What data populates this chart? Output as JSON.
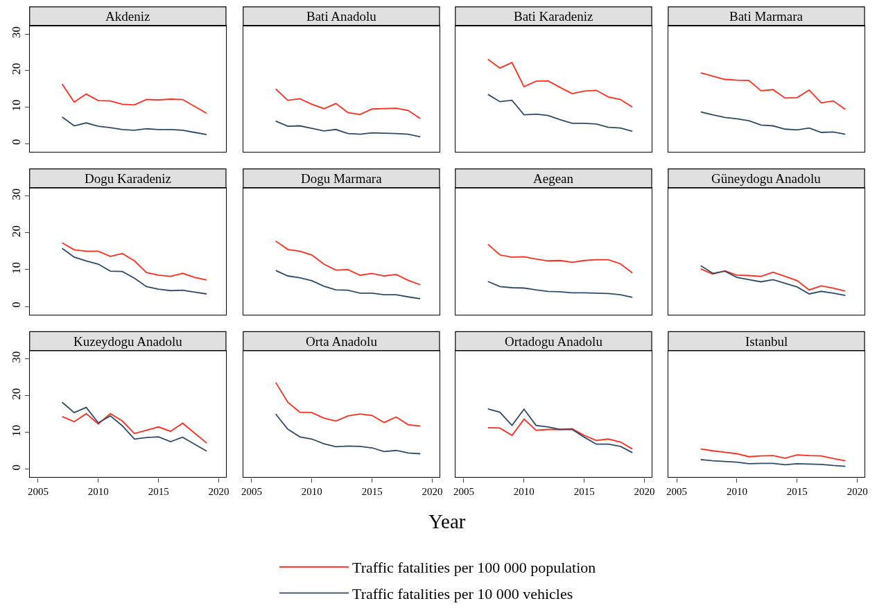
{
  "chart_data": [
    {
      "type": "line",
      "title": "Akdeniz",
      "x": [
        2007,
        2008,
        2009,
        2010,
        2011,
        2012,
        2013,
        2014,
        2015,
        2016,
        2017,
        2018,
        2019
      ],
      "xlim": [
        2004.3,
        2020.6
      ],
      "ylim": [
        -2.2,
        32.2
      ],
      "xticks": [
        2005,
        2010,
        2015,
        2020
      ],
      "yticks": [
        0,
        10,
        20,
        30
      ],
      "tick_labels": "y",
      "grid": false,
      "legend": "bottom",
      "series": [
        {
          "name": "Traffic fatalities per 100 000 population",
          "color": "#ff2a1a",
          "values": [
            16.3,
            11.4,
            13.6,
            11.8,
            11.7,
            10.8,
            10.6,
            12.1,
            12.0,
            12.2,
            12.1,
            10.2,
            8.3
          ]
        },
        {
          "name": "Traffic fatalities per 10 000 vehicles",
          "color": "#2e4a6b",
          "values": [
            7.3,
            4.9,
            5.7,
            4.8,
            4.4,
            3.9,
            3.7,
            4.1,
            3.9,
            3.9,
            3.7,
            3.1,
            2.5
          ]
        }
      ]
    },
    {
      "type": "line",
      "title": "Bati Anadolu",
      "x": [
        2007,
        2008,
        2009,
        2010,
        2011,
        2012,
        2013,
        2014,
        2015,
        2016,
        2017,
        2018,
        2019
      ],
      "xlim": [
        2004.3,
        2020.6
      ],
      "ylim": [
        -2.2,
        32.2
      ],
      "xticks": [
        2005,
        2010,
        2015,
        2020
      ],
      "yticks": [
        0,
        10,
        20,
        30
      ],
      "tick_labels": false,
      "grid": false,
      "series": [
        {
          "name": "Traffic fatalities per 100 000 population",
          "color": "#ff2a1a",
          "values": [
            15.0,
            11.9,
            12.3,
            10.8,
            9.6,
            11.0,
            8.5,
            8.0,
            9.5,
            9.6,
            9.7,
            9.1,
            6.9
          ]
        },
        {
          "name": "Traffic fatalities per 10 000 vehicles",
          "color": "#2e4a6b",
          "values": [
            6.2,
            4.8,
            4.9,
            4.2,
            3.5,
            3.9,
            2.8,
            2.6,
            3.0,
            2.9,
            2.8,
            2.6,
            1.9
          ]
        }
      ]
    },
    {
      "type": "line",
      "title": "Bati Karadeniz",
      "x": [
        2007,
        2008,
        2009,
        2010,
        2011,
        2012,
        2013,
        2014,
        2015,
        2016,
        2017,
        2018,
        2019
      ],
      "xlim": [
        2004.3,
        2020.6
      ],
      "ylim": [
        -2.2,
        32.2
      ],
      "xticks": [
        2005,
        2010,
        2015,
        2020
      ],
      "yticks": [
        0,
        10,
        20,
        30
      ],
      "tick_labels": false,
      "grid": false,
      "series": [
        {
          "name": "Traffic fatalities per 100 000 population",
          "color": "#ff2a1a",
          "values": [
            23.1,
            20.7,
            22.2,
            15.6,
            17.1,
            17.2,
            15.4,
            13.7,
            14.4,
            14.6,
            12.8,
            12.1,
            10.0
          ]
        },
        {
          "name": "Traffic fatalities per 10 000 vehicles",
          "color": "#2e4a6b",
          "values": [
            13.5,
            11.5,
            11.9,
            7.9,
            8.1,
            7.7,
            6.6,
            5.6,
            5.6,
            5.4,
            4.5,
            4.3,
            3.4
          ]
        }
      ]
    },
    {
      "type": "line",
      "title": "Bati Marmara",
      "x": [
        2007,
        2008,
        2009,
        2010,
        2011,
        2012,
        2013,
        2014,
        2015,
        2016,
        2017,
        2018,
        2019
      ],
      "xlim": [
        2004.3,
        2020.6
      ],
      "ylim": [
        -2.2,
        32.2
      ],
      "xticks": [
        2005,
        2010,
        2015,
        2020
      ],
      "yticks": [
        0,
        10,
        20,
        30
      ],
      "tick_labels": false,
      "grid": false,
      "series": [
        {
          "name": "Traffic fatalities per 100 000 population",
          "color": "#ff2a1a",
          "values": [
            19.4,
            18.5,
            17.6,
            17.4,
            17.3,
            14.5,
            14.8,
            12.5,
            12.6,
            14.7,
            11.2,
            11.7,
            9.4
          ]
        },
        {
          "name": "Traffic fatalities per 10 000 vehicles",
          "color": "#2e4a6b",
          "values": [
            8.7,
            7.9,
            7.2,
            6.8,
            6.3,
            5.1,
            4.9,
            4.0,
            3.8,
            4.3,
            3.1,
            3.2,
            2.6
          ]
        }
      ]
    },
    {
      "type": "line",
      "title": "Dogu Karadeniz",
      "x": [
        2007,
        2008,
        2009,
        2010,
        2011,
        2012,
        2013,
        2014,
        2015,
        2016,
        2017,
        2018,
        2019
      ],
      "xlim": [
        2004.3,
        2020.6
      ],
      "ylim": [
        -2.2,
        32.2
      ],
      "xticks": [
        2005,
        2010,
        2015,
        2020
      ],
      "yticks": [
        0,
        10,
        20,
        30
      ],
      "tick_labels": "y",
      "grid": false,
      "series": [
        {
          "name": "Traffic fatalities per 100 000 population",
          "color": "#ff2a1a",
          "values": [
            17.3,
            15.4,
            15.0,
            15.0,
            13.6,
            14.4,
            12.4,
            9.2,
            8.5,
            8.2,
            9.0,
            7.9,
            7.2
          ]
        },
        {
          "name": "Traffic fatalities per 10 000 vehicles",
          "color": "#2e4a6b",
          "values": [
            15.8,
            13.4,
            12.4,
            11.5,
            9.6,
            9.5,
            7.7,
            5.4,
            4.7,
            4.3,
            4.4,
            3.9,
            3.4
          ]
        }
      ]
    },
    {
      "type": "line",
      "title": "Dogu Marmara",
      "x": [
        2007,
        2008,
        2009,
        2010,
        2011,
        2012,
        2013,
        2014,
        2015,
        2016,
        2017,
        2018,
        2019
      ],
      "xlim": [
        2004.3,
        2020.6
      ],
      "ylim": [
        -2.2,
        32.2
      ],
      "xticks": [
        2005,
        2010,
        2015,
        2020
      ],
      "yticks": [
        0,
        10,
        20,
        30
      ],
      "tick_labels": false,
      "grid": false,
      "series": [
        {
          "name": "Traffic fatalities per 100 000 population",
          "color": "#ff2a1a",
          "values": [
            17.8,
            15.5,
            15.0,
            14.0,
            11.5,
            9.9,
            10.0,
            8.5,
            9.0,
            8.3,
            8.7,
            7.1,
            5.9
          ]
        },
        {
          "name": "Traffic fatalities per 10 000 vehicles",
          "color": "#2e4a6b",
          "values": [
            9.8,
            8.3,
            7.8,
            7.0,
            5.5,
            4.5,
            4.4,
            3.6,
            3.6,
            3.2,
            3.2,
            2.6,
            2.1
          ]
        }
      ]
    },
    {
      "type": "line",
      "title": "Aegean",
      "x": [
        2007,
        2008,
        2009,
        2010,
        2011,
        2012,
        2013,
        2014,
        2015,
        2016,
        2017,
        2018,
        2019
      ],
      "xlim": [
        2004.3,
        2020.6
      ],
      "ylim": [
        -2.2,
        32.2
      ],
      "xticks": [
        2005,
        2010,
        2015,
        2020
      ],
      "yticks": [
        0,
        10,
        20,
        30
      ],
      "tick_labels": false,
      "grid": false,
      "series": [
        {
          "name": "Traffic fatalities per 100 000 population",
          "color": "#ff2a1a",
          "values": [
            16.9,
            14.0,
            13.4,
            13.5,
            12.9,
            12.4,
            12.5,
            12.0,
            12.5,
            12.7,
            12.7,
            11.6,
            9.1
          ]
        },
        {
          "name": "Traffic fatalities per 10 000 vehicles",
          "color": "#2e4a6b",
          "values": [
            6.8,
            5.4,
            5.1,
            5.0,
            4.5,
            4.1,
            4.0,
            3.7,
            3.7,
            3.6,
            3.5,
            3.2,
            2.5
          ]
        }
      ]
    },
    {
      "type": "line",
      "title": "Güneydogu Anadolu",
      "x": [
        2007,
        2008,
        2009,
        2010,
        2011,
        2012,
        2013,
        2014,
        2015,
        2016,
        2017,
        2018,
        2019
      ],
      "xlim": [
        2004.3,
        2020.6
      ],
      "ylim": [
        -2.2,
        32.2
      ],
      "xticks": [
        2005,
        2010,
        2015,
        2020
      ],
      "yticks": [
        0,
        10,
        20,
        30
      ],
      "tick_labels": false,
      "grid": false,
      "series": [
        {
          "name": "Traffic fatalities per 100 000 population",
          "color": "#ff2a1a",
          "values": [
            10.2,
            8.8,
            9.7,
            8.5,
            8.4,
            8.2,
            9.3,
            8.2,
            7.0,
            4.5,
            5.6,
            5.0,
            4.2
          ]
        },
        {
          "name": "Traffic fatalities per 10 000 vehicles",
          "color": "#2e4a6b",
          "values": [
            11.1,
            9.0,
            9.6,
            7.9,
            7.3,
            6.7,
            7.3,
            6.3,
            5.3,
            3.4,
            4.1,
            3.6,
            3.0
          ]
        }
      ]
    },
    {
      "type": "line",
      "title": "Kuzeydogu Anadolu",
      "x": [
        2007,
        2008,
        2009,
        2010,
        2011,
        2012,
        2013,
        2014,
        2015,
        2016,
        2017,
        2018,
        2019
      ],
      "xlim": [
        2004.3,
        2020.6
      ],
      "ylim": [
        -2.2,
        32.2
      ],
      "xticks": [
        2005,
        2010,
        2015,
        2020
      ],
      "yticks": [
        0,
        10,
        20,
        30
      ],
      "grid": false,
      "series": [
        {
          "name": "Traffic fatalities per 100 000 population",
          "color": "#ff2a1a",
          "values": [
            14.3,
            12.9,
            15.1,
            12.3,
            15.1,
            13.1,
            9.7,
            10.6,
            11.5,
            10.3,
            12.5,
            9.8,
            7.1
          ]
        },
        {
          "name": "Traffic fatalities per 10 000 vehicles",
          "color": "#2e4a6b",
          "values": [
            18.2,
            15.4,
            16.8,
            12.6,
            14.5,
            11.8,
            8.2,
            8.6,
            8.8,
            7.5,
            8.7,
            6.8,
            4.9
          ]
        }
      ]
    },
    {
      "type": "line",
      "title": "Orta Anadolu",
      "xlabel": "Year",
      "x": [
        2007,
        2008,
        2009,
        2010,
        2011,
        2012,
        2013,
        2014,
        2015,
        2016,
        2017,
        2018,
        2019
      ],
      "xlim": [
        2004.3,
        2020.6
      ],
      "ylim": [
        -2.2,
        32.2
      ],
      "xticks": [
        2005,
        2010,
        2015,
        2020
      ],
      "yticks": [
        0,
        10,
        20,
        30
      ],
      "tick_labels": "x",
      "grid": false,
      "series": [
        {
          "name": "Traffic fatalities per 100 000 population",
          "color": "#ff2a1a",
          "values": [
            23.6,
            18.2,
            15.5,
            15.4,
            13.9,
            13.1,
            14.5,
            15.0,
            14.6,
            12.7,
            14.2,
            12.1,
            11.7
          ]
        },
        {
          "name": "Traffic fatalities per 10 000 vehicles",
          "color": "#2e4a6b",
          "values": [
            15.0,
            10.9,
            8.8,
            8.2,
            6.9,
            6.1,
            6.3,
            6.2,
            5.8,
            4.8,
            5.1,
            4.4,
            4.2
          ]
        }
      ]
    },
    {
      "type": "line",
      "title": "Ortadogu Anadolu",
      "x": [
        2007,
        2008,
        2009,
        2010,
        2011,
        2012,
        2013,
        2014,
        2015,
        2016,
        2017,
        2018,
        2019
      ],
      "xlim": [
        2004.3,
        2020.6
      ],
      "ylim": [
        -2.2,
        32.2
      ],
      "xticks": [
        2005,
        2010,
        2015,
        2020
      ],
      "yticks": [
        0,
        10,
        20,
        30
      ],
      "tick_labels": "x",
      "grid": false,
      "series": [
        {
          "name": "Traffic fatalities per 100 000 population",
          "color": "#ff2a1a",
          "values": [
            11.3,
            11.2,
            9.2,
            13.6,
            10.6,
            10.8,
            10.8,
            11.0,
            9.2,
            7.8,
            8.2,
            7.4,
            5.5
          ]
        },
        {
          "name": "Traffic fatalities per 10 000 vehicles",
          "color": "#2e4a6b",
          "values": [
            16.4,
            15.5,
            11.9,
            16.3,
            11.9,
            11.5,
            10.8,
            10.8,
            8.7,
            6.8,
            6.8,
            6.2,
            4.5
          ]
        }
      ]
    },
    {
      "type": "line",
      "title": "Istanbul",
      "x": [
        2007,
        2008,
        2009,
        2010,
        2011,
        2012,
        2013,
        2014,
        2015,
        2016,
        2017,
        2018,
        2019
      ],
      "xlim": [
        2004.3,
        2020.6
      ],
      "ylim": [
        -2.2,
        32.2
      ],
      "xticks": [
        2005,
        2010,
        2015,
        2020
      ],
      "yticks": [
        0,
        10,
        20,
        30
      ],
      "tick_labels": "x",
      "grid": false,
      "series": [
        {
          "name": "Traffic fatalities per 100 000 population",
          "color": "#ff2a1a",
          "values": [
            5.5,
            5.0,
            4.6,
            4.2,
            3.4,
            3.6,
            3.7,
            3.0,
            3.9,
            3.7,
            3.6,
            2.9,
            2.3
          ]
        },
        {
          "name": "Traffic fatalities per 10 000 vehicles",
          "color": "#2e4a6b",
          "values": [
            2.6,
            2.3,
            2.1,
            1.9,
            1.5,
            1.6,
            1.6,
            1.2,
            1.5,
            1.4,
            1.3,
            1.0,
            0.8
          ]
        }
      ]
    }
  ]
}
